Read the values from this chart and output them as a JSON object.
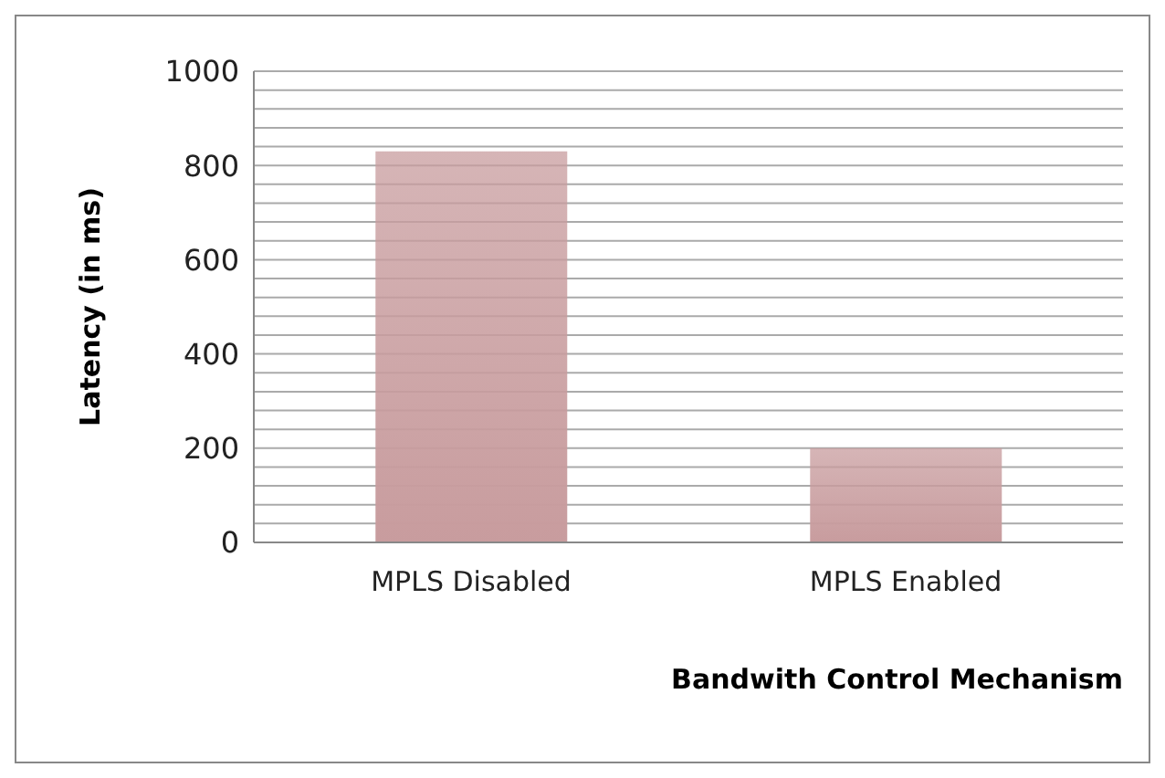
{
  "chart_data": {
    "type": "bar",
    "xlabel": "Bandwith Control Mechanism",
    "ylabel": "Latency  (in ms)",
    "categories": [
      "MPLS Disabled",
      "MPLS Enabled"
    ],
    "values": [
      830,
      200
    ],
    "color": "#c89c9e",
    "ylim": [
      0,
      1000
    ],
    "yticks": [
      0,
      {
        "value": 40,
        "label": null
      },
      {
        "value": 80,
        "label": null
      },
      {
        "value": 120,
        "label": null
      },
      {
        "value": 160,
        "label": null
      },
      200,
      {
        "value": 240,
        "label": null
      },
      {
        "value": 280,
        "label": null
      },
      {
        "value": 320,
        "label": null
      },
      {
        "value": 360,
        "label": null
      },
      400,
      {
        "value": 440,
        "label": null
      },
      {
        "value": 480,
        "label": null
      },
      {
        "value": 520,
        "label": null
      },
      {
        "value": 560,
        "label": null
      },
      600,
      {
        "value": 640,
        "label": null
      },
      {
        "value": 680,
        "label": null
      },
      {
        "value": 720,
        "label": null
      },
      {
        "value": 760,
        "label": null
      },
      800,
      {
        "value": 840,
        "label": null
      },
      {
        "value": 880,
        "label": null
      },
      {
        "value": 920,
        "label": null
      },
      {
        "value": 960,
        "label": null
      },
      1000
    ],
    "grid": true
  }
}
